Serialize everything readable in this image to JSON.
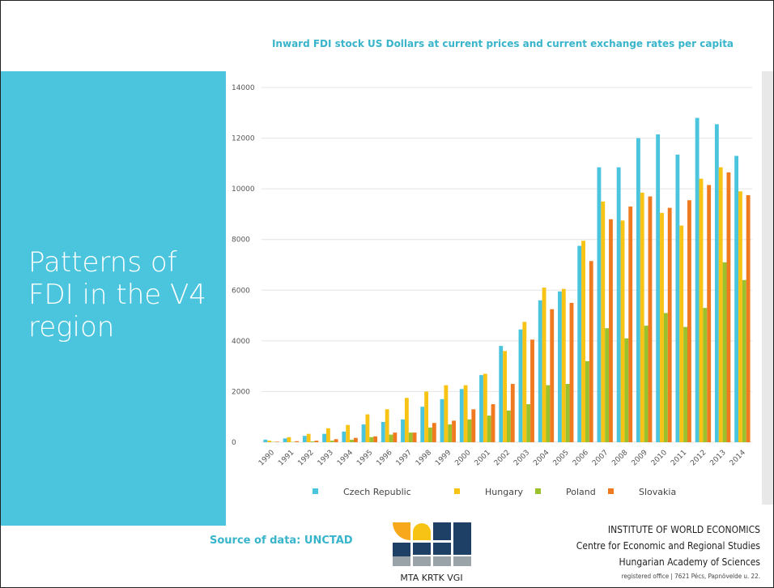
{
  "slide": {
    "heading": [
      "Patterns of",
      "FDI in the V4",
      "region"
    ],
    "source": "Source  of data: UNCTAD",
    "logo_text": "MTA KRTK VGI",
    "institute": [
      "INSTITUTE OF WORLD ECONOMICS",
      "Centre for Economic and Regional Studies",
      "Hungarian Academy of Sciences",
      "registered office  |  7621 Pécs, Papnövelde u. 22."
    ]
  },
  "chart_data": {
    "type": "bar",
    "title": "Inward FDI stock US Dollars at current prices and current exchange rates per capita",
    "categories": [
      "1990",
      "1991",
      "1992",
      "1993",
      "1994",
      "1995",
      "1996",
      "1997",
      "1998",
      "1999",
      "2000",
      "2001",
      "2002",
      "2003",
      "2004",
      "2005",
      "2006",
      "2007",
      "2008",
      "2009",
      "2010",
      "2011",
      "2012",
      "2013",
      "2014"
    ],
    "series": [
      {
        "name": "Czech Republic",
        "color": "#4bc4dd",
        "values": [
          100,
          150,
          250,
          330,
          420,
          700,
          800,
          900,
          1400,
          1700,
          2100,
          2650,
          3800,
          4450,
          5600,
          5950,
          7750,
          10850,
          10850,
          12000,
          12150,
          11350,
          12800,
          12550,
          11300
        ]
      },
      {
        "name": "Hungary",
        "color": "#f7c415",
        "values": [
          60,
          200,
          330,
          550,
          680,
          1100,
          1300,
          1750,
          2000,
          2250,
          2250,
          2700,
          3600,
          4750,
          6100,
          6050,
          7950,
          9500,
          8750,
          9850,
          9050,
          8550,
          10400,
          10850,
          9900
        ]
      },
      {
        "name": "Poland",
        "color": "#9bc12c",
        "values": [
          10,
          10,
          30,
          60,
          100,
          200,
          300,
          380,
          580,
          700,
          900,
          1050,
          1250,
          1500,
          2250,
          2300,
          3200,
          4500,
          4100,
          4600,
          5100,
          4550,
          5300,
          7100,
          6400
        ]
      },
      {
        "name": "Slovakia",
        "color": "#f07a1f",
        "values": [
          20,
          40,
          60,
          120,
          170,
          230,
          380,
          380,
          760,
          850,
          1300,
          1500,
          2300,
          4050,
          5250,
          5500,
          7150,
          8800,
          9300,
          9700,
          9250,
          9550,
          10150,
          10650,
          9750
        ]
      }
    ],
    "ylim": [
      0,
      14000
    ],
    "yticks": [
      0,
      2000,
      4000,
      6000,
      8000,
      10000,
      12000,
      14000
    ],
    "grid": true,
    "legend": "bottom"
  }
}
